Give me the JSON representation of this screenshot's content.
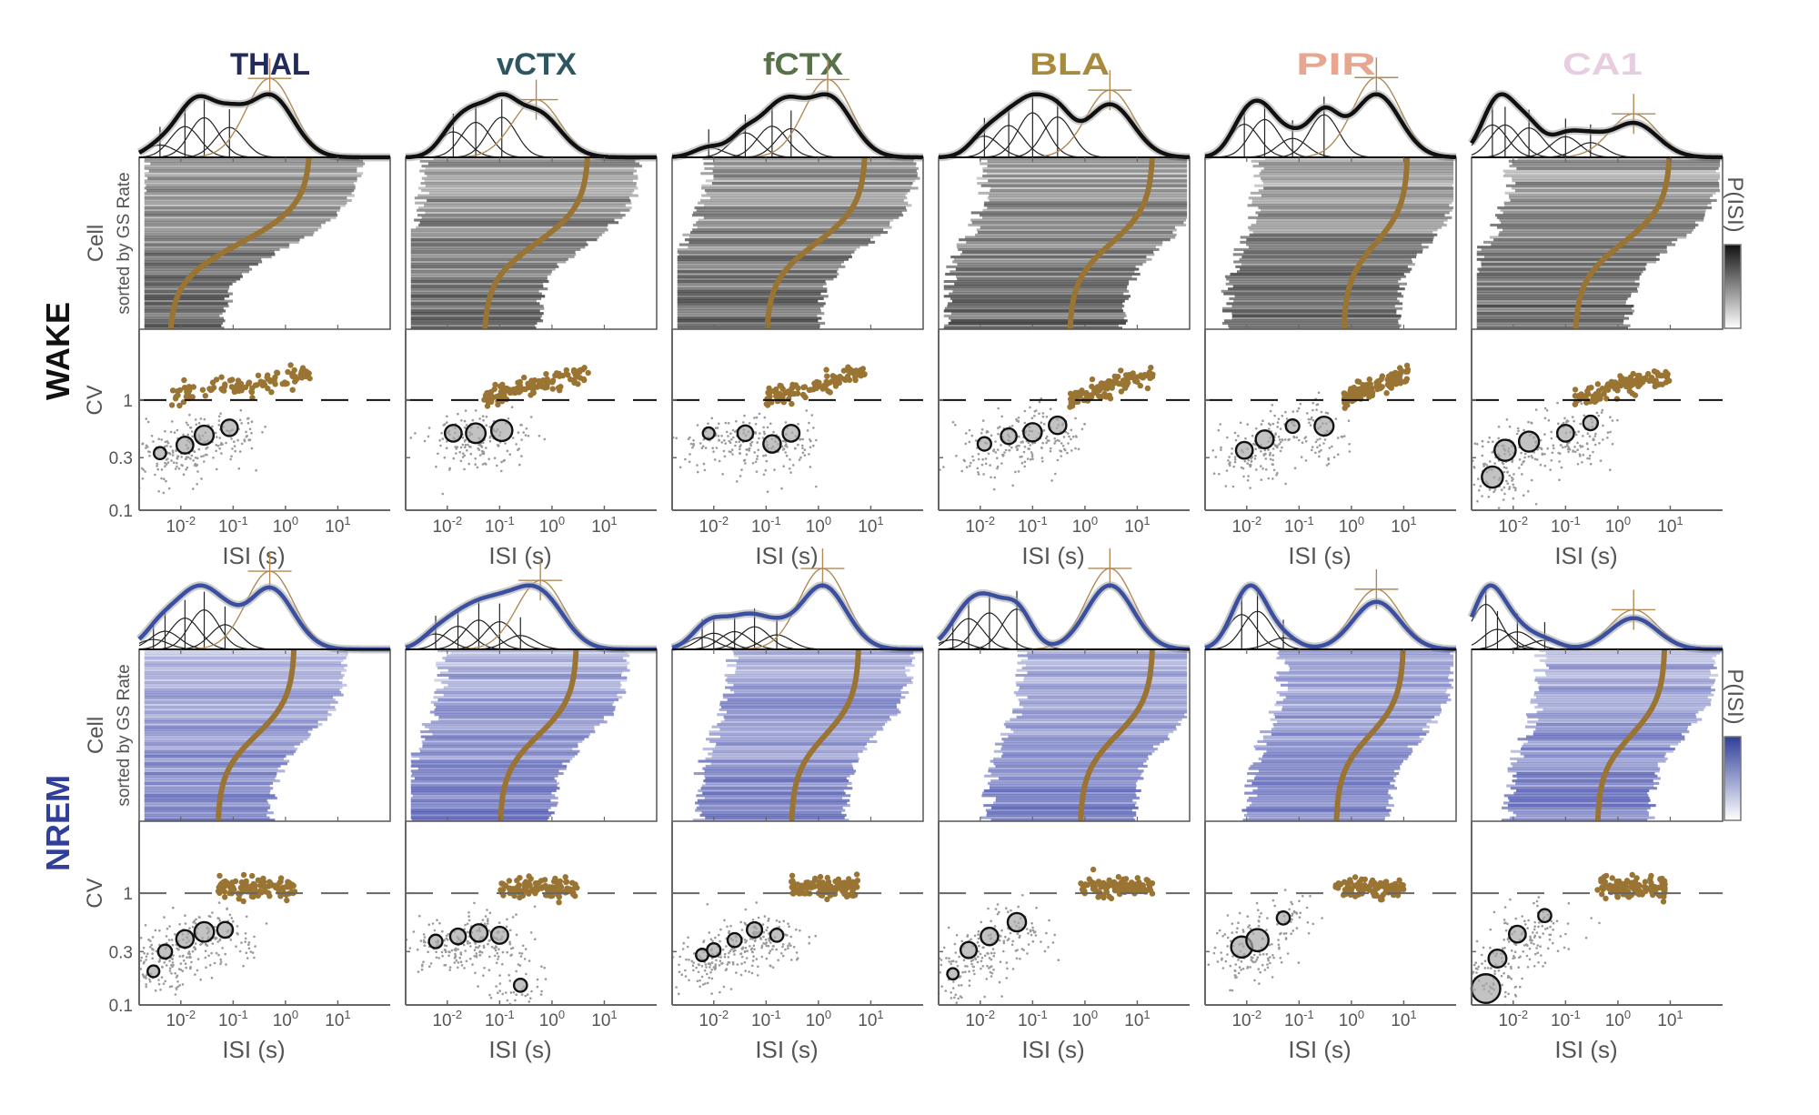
{
  "chart_data": {
    "type": "scatter",
    "title": "",
    "regions": [
      {
        "name": "THAL",
        "color": "#232a5c"
      },
      {
        "name": "vCTX",
        "color": "#2e5662"
      },
      {
        "name": "fCTX",
        "color": "#57714a"
      },
      {
        "name": "BLA",
        "color": "#a88a3e"
      },
      {
        "name": "PIR",
        "color": "#e8a58f"
      },
      {
        "name": "CA1",
        "color": "#e8cde0"
      }
    ],
    "states": [
      {
        "name": "WAKE",
        "label_color": "#111111",
        "heatmap_color": "#1a1a1a",
        "hist_color": "#111111",
        "panels": [
          {
            "region": "THAL",
            "gs_mode": {
              "isi": 0.5,
              "height": 0.85
            },
            "as_modes": [
              {
                "isi": 0.004,
                "h": 0.14,
                "cv": 0.33
              },
              {
                "isi": 0.012,
                "h": 0.35,
                "cv": 0.39
              },
              {
                "isi": 0.028,
                "h": 0.45,
                "cv": 0.48
              },
              {
                "isi": 0.085,
                "h": 0.34,
                "cv": 0.56
              }
            ],
            "hist_peak_isi": 0.03,
            "heatmap_peak_isi": 0.02,
            "gs_curve_isi": [
              0.006,
              3.0
            ]
          },
          {
            "region": "vCTX",
            "gs_mode": {
              "isi": 0.5,
              "height": 0.75
            },
            "as_modes": [
              {
                "isi": 0.013,
                "h": 0.35,
                "cv": 0.5
              },
              {
                "isi": 0.035,
                "h": 0.48,
                "cv": 0.5
              },
              {
                "isi": 0.11,
                "h": 0.55,
                "cv": 0.53
              }
            ],
            "hist_peak_isi": 0.05,
            "heatmap_peak_isi": 0.04,
            "gs_curve_isi": [
              0.05,
              5.0
            ]
          },
          {
            "region": "fCTX",
            "gs_mode": {
              "isi": 1.5,
              "height": 0.9
            },
            "as_modes": [
              {
                "isi": 0.008,
                "h": 0.12,
                "cv": 0.5
              },
              {
                "isi": 0.04,
                "h": 0.3,
                "cv": 0.5
              },
              {
                "isi": 0.13,
                "h": 0.38,
                "cv": 0.4
              },
              {
                "isi": 0.3,
                "h": 0.35,
                "cv": 0.5
              }
            ],
            "hist_peak_isi": 0.12,
            "heatmap_peak_isi": 0.1,
            "gs_curve_isi": [
              0.1,
              8.0
            ]
          },
          {
            "region": "BLA",
            "gs_mode": {
              "isi": 3.0,
              "height": 0.6
            },
            "as_modes": [
              {
                "isi": 0.012,
                "h": 0.2,
                "cv": 0.4
              },
              {
                "isi": 0.035,
                "h": 0.3,
                "cv": 0.47
              },
              {
                "isi": 0.1,
                "h": 0.42,
                "cv": 0.51
              },
              {
                "isi": 0.3,
                "h": 0.38,
                "cv": 0.59
              }
            ],
            "hist_peak_isi": 0.1,
            "heatmap_peak_isi": 0.1,
            "gs_curve_isi": [
              0.5,
              20.0
            ]
          },
          {
            "region": "PIR",
            "gs_mode": {
              "isi": 3.0,
              "height": 0.8
            },
            "as_modes": [
              {
                "isi": 0.009,
                "h": 0.35,
                "cv": 0.35
              },
              {
                "isi": 0.022,
                "h": 0.4,
                "cv": 0.44
              },
              {
                "isi": 0.075,
                "h": 0.2,
                "cv": 0.58
              },
              {
                "isi": 0.3,
                "h": 0.45,
                "cv": 0.58
              }
            ],
            "hist_peak_isi": 0.3,
            "heatmap_peak_isi": 0.3,
            "gs_curve_isi": [
              0.7,
              12.0
            ]
          },
          {
            "region": "CA1",
            "gs_mode": {
              "isi": 2.0,
              "height": 0.7
            },
            "as_modes": [
              {
                "isi": 0.004,
                "h": 0.55,
                "cv": 0.2
              },
              {
                "isi": 0.007,
                "h": 0.55,
                "cv": 0.35
              },
              {
                "isi": 0.02,
                "h": 0.5,
                "cv": 0.42
              },
              {
                "isi": 0.1,
                "h": 0.35,
                "cv": 0.5
              },
              {
                "isi": 0.3,
                "h": 0.25,
                "cv": 0.62
              }
            ],
            "hist_peak_isi": 0.01,
            "heatmap_peak_isi": 0.1,
            "gs_curve_isi": [
              0.15,
              10.0
            ]
          }
        ]
      },
      {
        "name": "NREM",
        "label_color": "#2f3f9a",
        "heatmap_color": "#3a44a8",
        "hist_color": "#3b4fa0",
        "panels": [
          {
            "region": "THAL",
            "gs_mode": {
              "isi": 0.5,
              "height": 0.9
            },
            "as_modes": [
              {
                "isi": 0.003,
                "h": 0.12,
                "cv": 0.2
              },
              {
                "isi": 0.005,
                "h": 0.22,
                "cv": 0.3
              },
              {
                "isi": 0.012,
                "h": 0.38,
                "cv": 0.39
              },
              {
                "isi": 0.028,
                "h": 0.48,
                "cv": 0.45
              },
              {
                "isi": 0.07,
                "h": 0.3,
                "cv": 0.47
              }
            ],
            "hist_peak_isi": 0.5,
            "heatmap_peak_isi": 0.02,
            "gs_curve_isi": [
              0.05,
              1.5
            ]
          },
          {
            "region": "vCTX",
            "gs_mode": {
              "isi": 0.6,
              "height": 0.85
            },
            "as_modes": [
              {
                "isi": 0.006,
                "h": 0.2,
                "cv": 0.37
              },
              {
                "isi": 0.016,
                "h": 0.3,
                "cv": 0.41
              },
              {
                "isi": 0.04,
                "h": 0.38,
                "cv": 0.44
              },
              {
                "isi": 0.1,
                "h": 0.36,
                "cv": 0.42
              },
              {
                "isi": 0.25,
                "h": 0.18,
                "cv": 0.15
              }
            ],
            "hist_peak_isi": 0.8,
            "heatmap_peak_isi": 0.3,
            "gs_curve_isi": [
              0.1,
              3.0
            ]
          },
          {
            "region": "fCTX",
            "gs_mode": {
              "isi": 1.2,
              "height": 0.95
            },
            "as_modes": [
              {
                "isi": 0.006,
                "h": 0.15,
                "cv": 0.28
              },
              {
                "isi": 0.01,
                "h": 0.2,
                "cv": 0.31
              },
              {
                "isi": 0.025,
                "h": 0.22,
                "cv": 0.38
              },
              {
                "isi": 0.06,
                "h": 0.28,
                "cv": 0.47
              },
              {
                "isi": 0.16,
                "h": 0.18,
                "cv": 0.42
              }
            ],
            "hist_peak_isi": 1.2,
            "heatmap_peak_isi": 1.0,
            "gs_curve_isi": [
              0.3,
              6.0
            ]
          },
          {
            "region": "BLA",
            "gs_mode": {
              "isi": 3.0,
              "height": 0.8
            },
            "as_modes": [
              {
                "isi": 0.003,
                "h": 0.1,
                "cv": 0.19
              },
              {
                "isi": 0.006,
                "h": 0.32,
                "cv": 0.31
              },
              {
                "isi": 0.015,
                "h": 0.38,
                "cv": 0.41
              },
              {
                "isi": 0.05,
                "h": 0.42,
                "cv": 0.55
              }
            ],
            "hist_peak_isi": 3.0,
            "heatmap_peak_isi": 3.0,
            "gs_curve_isi": [
              0.8,
              20.0
            ]
          },
          {
            "region": "PIR",
            "gs_mode": {
              "isi": 3.0,
              "height": 0.9
            },
            "as_modes": [
              {
                "isi": 0.008,
                "h": 0.55,
                "cv": 0.33
              },
              {
                "isi": 0.016,
                "h": 0.6,
                "cv": 0.38
              },
              {
                "isi": 0.05,
                "h": 0.18,
                "cv": 0.6
              }
            ],
            "hist_peak_isi": 3.0,
            "heatmap_peak_isi": 3.0,
            "gs_curve_isi": [
              0.5,
              10.0
            ]
          },
          {
            "region": "CA1",
            "gs_mode": {
              "isi": 2.0,
              "height": 0.75
            },
            "as_modes": [
              {
                "isi": 0.003,
                "h": 0.9,
                "cv": 0.14
              },
              {
                "isi": 0.005,
                "h": 0.4,
                "cv": 0.26
              },
              {
                "isi": 0.012,
                "h": 0.35,
                "cv": 0.43
              },
              {
                "isi": 0.04,
                "h": 0.18,
                "cv": 0.63
              }
            ],
            "hist_peak_isi": 2.0,
            "heatmap_peak_isi": 2.0,
            "gs_curve_isi": [
              0.4,
              8.0
            ]
          }
        ]
      }
    ],
    "xaxis": {
      "label": "ISI (s)",
      "scale": "log",
      "lim": [
        0.0016,
        100
      ],
      "ticks": [
        0.01,
        0.1,
        1,
        10
      ],
      "tick_labels": [
        {
          "base": "10",
          "exp": "-2"
        },
        {
          "base": "10",
          "exp": "-1"
        },
        {
          "base": "10",
          "exp": "0"
        },
        {
          "base": "10",
          "exp": "1"
        }
      ]
    },
    "heatmap": {
      "ylabel": "Cell",
      "ylabel_sub": "sorted by GS Rate",
      "colorbar_label": "P(ISI)"
    },
    "cv": {
      "ylabel": "CV",
      "scale": "log",
      "lim": [
        0.1,
        4.4
      ],
      "ticks": [
        0.1,
        0.3,
        1
      ],
      "tick_labels": [
        "0.1",
        "0.3",
        "1"
      ],
      "reference_line": 1
    },
    "colors": {
      "gs": "#9a7433",
      "as_scatter": "#9a9a9a",
      "mode_outline": "#111111",
      "axis": "#666666"
    }
  }
}
